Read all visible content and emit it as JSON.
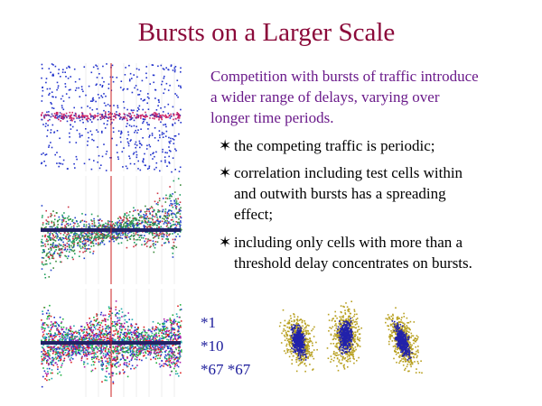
{
  "title": "Bursts on a Larger Scale",
  "intro": [
    "Competition with bursts of traffic introduce",
    "a wider range of delays, varying over",
    "longer time periods."
  ],
  "bullets": [
    [
      "the competing traffic is periodic;"
    ],
    [
      "correlation including test cells within",
      "and outwith bursts has a spreading",
      "effect;"
    ],
    [
      "including only cells with more than a",
      "threshold delay concentrates on bursts."
    ]
  ],
  "labels": [
    "*1",
    "*10",
    "*67  *67"
  ]
}
